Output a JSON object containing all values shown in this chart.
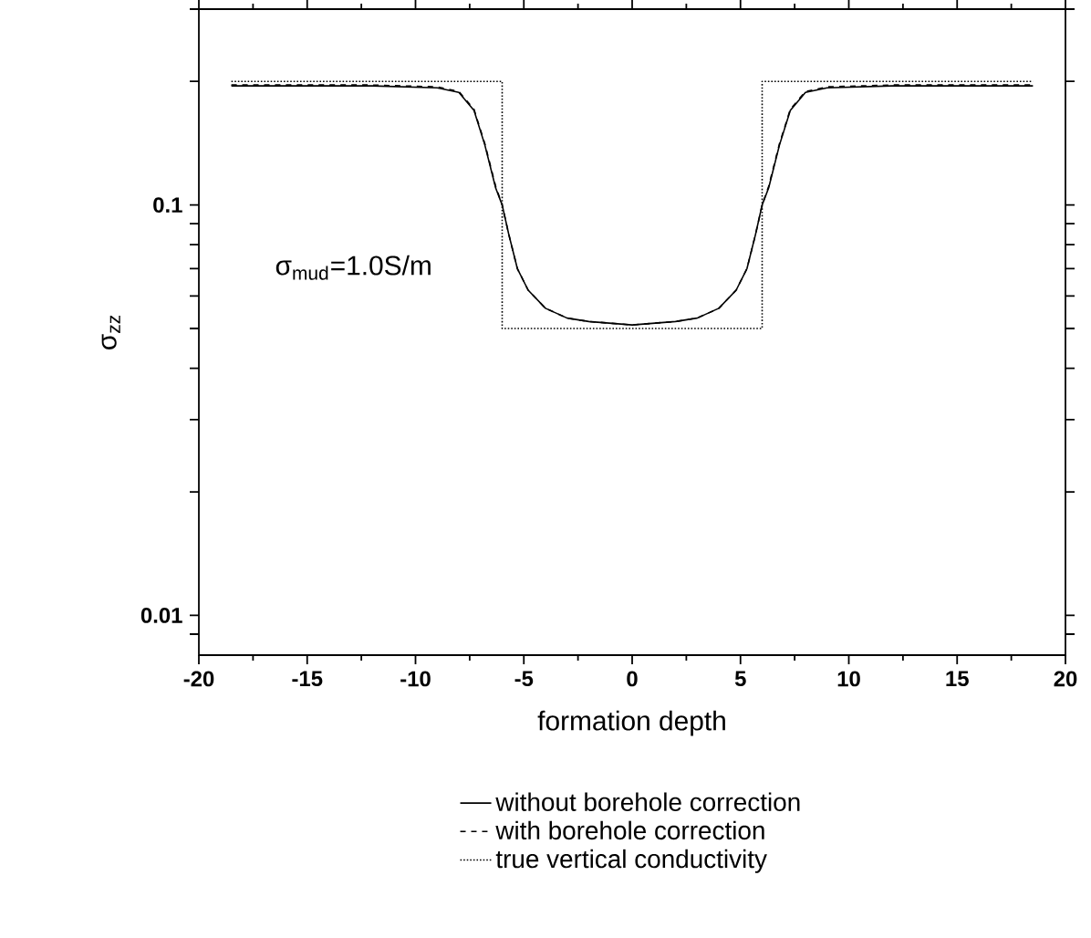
{
  "chart_data": {
    "type": "line",
    "xlabel": "formation depth",
    "ylabel": "σ$_{zz}$",
    "annotations": [
      "σ$_{mud}$=1.0S/m"
    ],
    "log": "y",
    "legend": "bottom",
    "grid": false,
    "xlim": [
      -20,
      20
    ],
    "ylim": [
      0.008,
      0.3
    ],
    "xticks": [
      -20,
      -15,
      -10,
      -5,
      0,
      5,
      10,
      15,
      20
    ],
    "yticks": [
      {
        "value": 0.009,
        "label": null
      },
      {
        "value": 0.01,
        "label": "0.01"
      },
      {
        "value": 0.02,
        "label": null
      },
      {
        "value": 0.03,
        "label": null
      },
      {
        "value": 0.04,
        "label": null
      },
      {
        "value": 0.05,
        "label": null
      },
      {
        "value": 0.06,
        "label": null
      },
      {
        "value": 0.07,
        "label": null
      },
      {
        "value": 0.08,
        "label": null
      },
      {
        "value": 0.09,
        "label": null
      },
      {
        "value": 0.1,
        "label": "0.1"
      },
      {
        "value": 0.2,
        "label": null
      },
      {
        "value": 0.3,
        "label": null
      }
    ],
    "series": [
      {
        "name": "without borehole correction",
        "color": "#000000",
        "line_style": "solid",
        "x": [
          -18.5,
          -12,
          -9,
          -8,
          -7.3,
          -6.8,
          -6.3,
          -6,
          -5.7,
          -5.3,
          -4.8,
          -4,
          -3,
          -2,
          0,
          2,
          3,
          4,
          4.8,
          5.3,
          5.7,
          6,
          6.3,
          6.8,
          7.3,
          8,
          9,
          12,
          18.5
        ],
        "values": [
          0.195,
          0.195,
          0.193,
          0.188,
          0.17,
          0.14,
          0.11,
          0.1,
          0.085,
          0.07,
          0.062,
          0.056,
          0.053,
          0.052,
          0.051,
          0.052,
          0.053,
          0.056,
          0.062,
          0.07,
          0.085,
          0.1,
          0.11,
          0.14,
          0.17,
          0.188,
          0.193,
          0.195,
          0.195
        ]
      },
      {
        "name": "with borehole correction",
        "color": "#000000",
        "line_style": "dashed",
        "x": [
          -18.5,
          -12,
          -9,
          -8,
          -7.3,
          -6.8,
          -6.3,
          -6,
          -5.7,
          -5.3,
          -4.8,
          -4,
          -3,
          -2,
          0,
          2,
          3,
          4,
          4.8,
          5.3,
          5.7,
          6,
          6.3,
          6.8,
          7.3,
          8,
          9,
          12,
          18.5
        ],
        "values": [
          0.196,
          0.196,
          0.194,
          0.189,
          0.171,
          0.141,
          0.111,
          0.1,
          0.085,
          0.07,
          0.062,
          0.056,
          0.053,
          0.052,
          0.051,
          0.052,
          0.053,
          0.056,
          0.062,
          0.07,
          0.085,
          0.1,
          0.111,
          0.141,
          0.171,
          0.189,
          0.194,
          0.196,
          0.196
        ]
      },
      {
        "name": "true vertical conductivity",
        "color": "#000000",
        "line_style": "dotted",
        "x": [
          -18.5,
          -6,
          -6,
          6,
          6,
          18.5
        ],
        "values": [
          0.2,
          0.2,
          0.05,
          0.05,
          0.2,
          0.2
        ]
      }
    ]
  }
}
